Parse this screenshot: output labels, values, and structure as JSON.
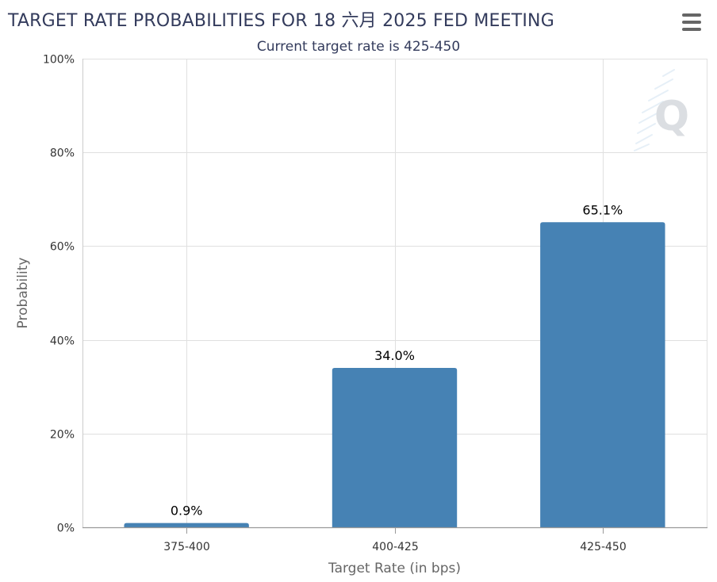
{
  "chart_data": {
    "type": "bar",
    "title": "TARGET RATE PROBABILITIES FOR 18 六月 2025 FED MEETING",
    "subtitle": "Current target rate is 425-450",
    "xlabel": "Target Rate (in bps)",
    "ylabel": "Probability",
    "categories": [
      "375-400",
      "400-425",
      "425-450"
    ],
    "values": [
      0.9,
      34.0,
      65.1
    ],
    "data_labels": [
      "0.9%",
      "34.0%",
      "65.1%"
    ],
    "ylim": [
      0,
      100
    ],
    "yticks": [
      0,
      20,
      40,
      60,
      80,
      100
    ],
    "ytick_labels": [
      "0%",
      "20%",
      "40%",
      "60%",
      "80%",
      "100%"
    ],
    "grid": true,
    "legend": "none",
    "colors": {
      "bar": "#4682b4",
      "grid": "#e0e0e0",
      "title": "#333b5c"
    }
  },
  "toolbar": {
    "menu_icon": "hamburger-menu-icon"
  },
  "watermark": {
    "icon": "q-logo-icon"
  }
}
